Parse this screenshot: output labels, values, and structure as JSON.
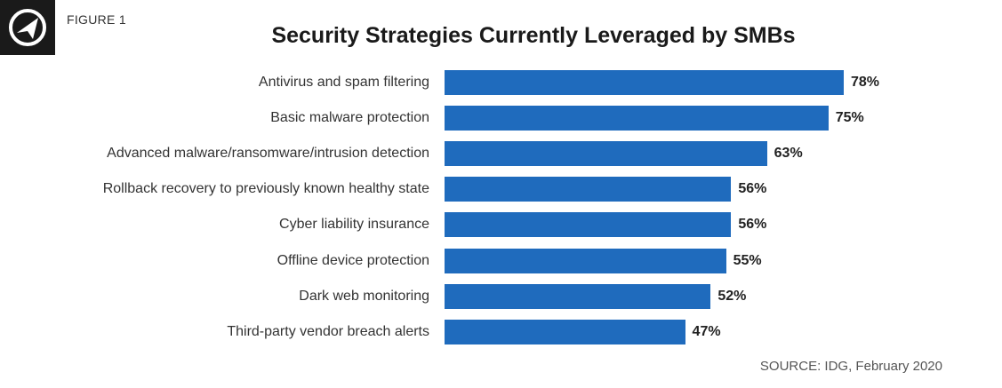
{
  "figure_label": "FIGURE 1",
  "source": "SOURCE: IDG, February 2020",
  "logo": {
    "icon": "compass-icon",
    "bg_color": "#1a1a1a"
  },
  "colors": {
    "bar": "#1f6bbd"
  },
  "chart_data": {
    "type": "bar",
    "orientation": "horizontal",
    "title": "Security Strategies Currently Leveraged by SMBs",
    "categories": [
      "Antivirus and spam filtering",
      "Basic malware protection",
      "Advanced malware/ransomware/intrusion detection",
      "Rollback recovery to previously known healthy state",
      "Cyber liability insurance",
      "Offline device protection",
      "Dark web monitoring",
      "Third-party vendor breach alerts"
    ],
    "values": [
      78,
      75,
      63,
      56,
      56,
      55,
      52,
      47
    ],
    "value_labels": [
      "78%",
      "75%",
      "63%",
      "56%",
      "56%",
      "55%",
      "52%",
      "47%"
    ],
    "unit": "%",
    "xlim": [
      0,
      78
    ]
  }
}
